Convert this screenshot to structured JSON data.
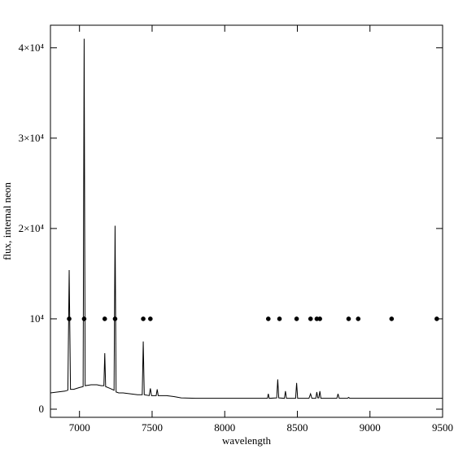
{
  "chart_data": {
    "type": "line",
    "x_label": "wavelength",
    "y_label": "flux, internal neon",
    "x": [
      6800,
      6850,
      6900,
      6920,
      6929,
      6938,
      6960,
      7000,
      7025,
      7032,
      7039,
      7080,
      7120,
      7150,
      7168,
      7174,
      7180,
      7210,
      7238,
      7245,
      7252,
      7270,
      7300,
      7350,
      7400,
      7432,
      7439,
      7446,
      7480,
      7488,
      7496,
      7528,
      7535,
      7542,
      7600,
      7650,
      7700,
      7800,
      8000,
      8200,
      8294,
      8300,
      8306,
      8358,
      8365,
      8372,
      8411,
      8418,
      8425,
      8488,
      8495,
      8502,
      8580,
      8591,
      8600,
      8627,
      8634,
      8641,
      8648,
      8655,
      8662,
      8772,
      8780,
      8788,
      8845,
      8853,
      8861,
      9000,
      9500
    ],
    "values": [
      1800,
      1900,
      2000,
      2100,
      15400,
      2200,
      2200,
      2400,
      2500,
      41000,
      2600,
      2700,
      2700,
      2600,
      2600,
      6200,
      2500,
      2300,
      2100,
      20300,
      1900,
      1800,
      1800,
      1700,
      1600,
      1600,
      7500,
      1600,
      1500,
      2300,
      1500,
      1500,
      2200,
      1500,
      1500,
      1400,
      1250,
      1200,
      1200,
      1200,
      1200,
      1700,
      1200,
      1250,
      3300,
      1250,
      1200,
      2000,
      1200,
      1200,
      2900,
      1200,
      1200,
      1700,
      1200,
      1200,
      1900,
      1250,
      1250,
      2000,
      1200,
      1200,
      1700,
      1200,
      1200,
      1300,
      1200,
      1200,
      1200
    ],
    "color": "#000000",
    "markers": {
      "x": [
        6929,
        7032,
        7174,
        7245,
        7439,
        7488,
        8300,
        8377,
        8495,
        8591,
        8634,
        8655,
        8853,
        8919,
        9149,
        9460
      ],
      "values": [
        10000,
        10000,
        10000,
        10000,
        10000,
        10000,
        10000,
        10000,
        10000,
        10000,
        10000,
        10000,
        10000,
        10000,
        10000,
        10000
      ]
    },
    "xlim": [
      6800,
      9500
    ],
    "xticks": [
      7000,
      7500,
      8000,
      8500,
      9000,
      9500
    ],
    "ylim": [
      -900,
      42500
    ],
    "yticks": [
      0,
      {
        "value": 10000,
        "label": "10⁴"
      },
      {
        "value": 20000,
        "label": "2×10⁴"
      },
      {
        "value": 30000,
        "label": "3×10⁴"
      },
      {
        "value": 40000,
        "label": "4×10⁴"
      }
    ]
  }
}
